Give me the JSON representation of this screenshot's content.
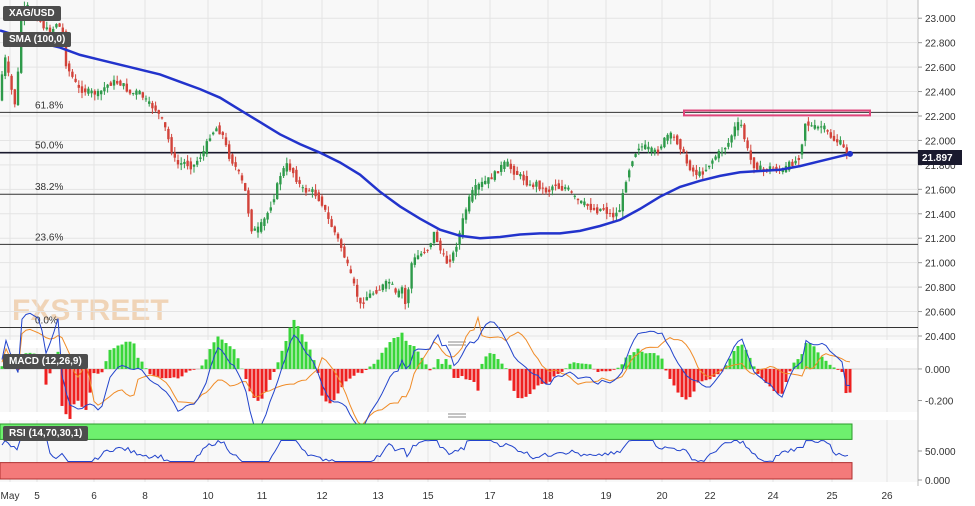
{
  "chart_data": {
    "type": "candlestick",
    "title": "XAG/USD",
    "indicator_label": "SMA (100,0)",
    "last_price": "21.897",
    "watermark": "FXSTREET",
    "price_axis": {
      "ylim": [
        20.4,
        23.1
      ],
      "ticks": [
        "23.000",
        "22.800",
        "22.600",
        "22.400",
        "22.200",
        "22.000",
        "21.800",
        "21.600",
        "21.400",
        "21.200",
        "21.000",
        "20.800",
        "20.600",
        "20.400"
      ]
    },
    "x_axis": {
      "ticks": [
        "May",
        "5",
        "6",
        "8",
        "10",
        "11",
        "12",
        "13",
        "15",
        "17",
        "18",
        "19",
        "20",
        "22",
        "24",
        "25",
        "26"
      ]
    },
    "fibonacci": [
      {
        "label": "61.8%",
        "value": 22.23
      },
      {
        "label": "50.0%",
        "value": 21.9
      },
      {
        "label": "38.2%",
        "value": 21.56
      },
      {
        "label": "23.6%",
        "value": 21.15
      },
      {
        "label": "0.0%",
        "value": 20.47
      }
    ],
    "resistance_zone": [
      22.205,
      22.245
    ],
    "price_path": [
      [
        0,
        22.3
      ],
      [
        6,
        22.7
      ],
      [
        12,
        22.45
      ],
      [
        18,
        22.25
      ],
      [
        22,
        23.0
      ],
      [
        28,
        23.1
      ],
      [
        34,
        23.05
      ],
      [
        40,
        23.0
      ],
      [
        46,
        22.92
      ],
      [
        52,
        22.88
      ],
      [
        58,
        22.96
      ],
      [
        64,
        22.9
      ],
      [
        68,
        22.6
      ],
      [
        72,
        22.55
      ],
      [
        80,
        22.42
      ],
      [
        90,
        22.4
      ],
      [
        100,
        22.38
      ],
      [
        108,
        22.45
      ],
      [
        116,
        22.48
      ],
      [
        124,
        22.46
      ],
      [
        132,
        22.38
      ],
      [
        140,
        22.4
      ],
      [
        150,
        22.3
      ],
      [
        158,
        22.25
      ],
      [
        166,
        22.12
      ],
      [
        172,
        21.95
      ],
      [
        178,
        21.8
      ],
      [
        186,
        21.82
      ],
      [
        194,
        21.78
      ],
      [
        200,
        21.85
      ],
      [
        206,
        21.92
      ],
      [
        212,
        22.05
      ],
      [
        218,
        22.1
      ],
      [
        224,
        22.05
      ],
      [
        230,
        21.88
      ],
      [
        236,
        21.8
      ],
      [
        242,
        21.7
      ],
      [
        248,
        21.55
      ],
      [
        252,
        21.28
      ],
      [
        258,
        21.26
      ],
      [
        264,
        21.32
      ],
      [
        270,
        21.42
      ],
      [
        276,
        21.55
      ],
      [
        282,
        21.72
      ],
      [
        288,
        21.8
      ],
      [
        294,
        21.75
      ],
      [
        300,
        21.65
      ],
      [
        306,
        21.58
      ],
      [
        312,
        21.6
      ],
      [
        318,
        21.55
      ],
      [
        324,
        21.48
      ],
      [
        330,
        21.35
      ],
      [
        338,
        21.22
      ],
      [
        344,
        21.1
      ],
      [
        350,
        20.95
      ],
      [
        356,
        20.8
      ],
      [
        362,
        20.65
      ],
      [
        368,
        20.72
      ],
      [
        374,
        20.75
      ],
      [
        380,
        20.78
      ],
      [
        386,
        20.82
      ],
      [
        392,
        20.85
      ],
      [
        398,
        20.72
      ],
      [
        404,
        20.8
      ],
      [
        408,
        20.6
      ],
      [
        412,
        20.98
      ],
      [
        418,
        21.05
      ],
      [
        424,
        21.08
      ],
      [
        430,
        21.12
      ],
      [
        436,
        21.25
      ],
      [
        442,
        21.1
      ],
      [
        448,
        21.0
      ],
      [
        454,
        21.05
      ],
      [
        460,
        21.2
      ],
      [
        466,
        21.4
      ],
      [
        472,
        21.55
      ],
      [
        478,
        21.62
      ],
      [
        484,
        21.65
      ],
      [
        490,
        21.68
      ],
      [
        496,
        21.72
      ],
      [
        502,
        21.78
      ],
      [
        508,
        21.82
      ],
      [
        514,
        21.75
      ],
      [
        520,
        21.72
      ],
      [
        526,
        21.68
      ],
      [
        532,
        21.62
      ],
      [
        538,
        21.65
      ],
      [
        544,
        21.6
      ],
      [
        550,
        21.58
      ],
      [
        556,
        21.65
      ],
      [
        562,
        21.6
      ],
      [
        568,
        21.62
      ],
      [
        574,
        21.55
      ],
      [
        580,
        21.5
      ],
      [
        586,
        21.48
      ],
      [
        592,
        21.45
      ],
      [
        598,
        21.42
      ],
      [
        604,
        21.45
      ],
      [
        610,
        21.4
      ],
      [
        616,
        21.38
      ],
      [
        622,
        21.45
      ],
      [
        628,
        21.7
      ],
      [
        634,
        21.85
      ],
      [
        640,
        21.95
      ],
      [
        646,
        21.95
      ],
      [
        652,
        21.92
      ],
      [
        658,
        21.9
      ],
      [
        664,
        21.98
      ],
      [
        670,
        22.05
      ],
      [
        676,
        22.02
      ],
      [
        682,
        21.95
      ],
      [
        688,
        21.82
      ],
      [
        694,
        21.75
      ],
      [
        700,
        21.72
      ],
      [
        706,
        21.75
      ],
      [
        712,
        21.82
      ],
      [
        718,
        21.88
      ],
      [
        724,
        21.92
      ],
      [
        730,
        21.98
      ],
      [
        736,
        22.1
      ],
      [
        742,
        22.15
      ],
      [
        748,
        21.95
      ],
      [
        754,
        21.8
      ],
      [
        760,
        21.78
      ],
      [
        766,
        21.75
      ],
      [
        772,
        21.78
      ],
      [
        778,
        21.76
      ],
      [
        784,
        21.75
      ],
      [
        790,
        21.8
      ],
      [
        796,
        21.82
      ],
      [
        802,
        21.88
      ],
      [
        806,
        22.15
      ],
      [
        812,
        22.12
      ],
      [
        818,
        22.1
      ],
      [
        824,
        22.12
      ],
      [
        830,
        22.05
      ],
      [
        836,
        22.0
      ],
      [
        842,
        21.98
      ],
      [
        846,
        21.92
      ],
      [
        850,
        21.897
      ]
    ],
    "sma_path": [
      [
        0,
        22.9
      ],
      [
        20,
        22.85
      ],
      [
        40,
        22.8
      ],
      [
        60,
        22.76
      ],
      [
        80,
        22.7
      ],
      [
        100,
        22.66
      ],
      [
        120,
        22.62
      ],
      [
        140,
        22.58
      ],
      [
        160,
        22.54
      ],
      [
        180,
        22.48
      ],
      [
        200,
        22.42
      ],
      [
        220,
        22.35
      ],
      [
        240,
        22.25
      ],
      [
        260,
        22.15
      ],
      [
        280,
        22.05
      ],
      [
        300,
        21.97
      ],
      [
        320,
        21.9
      ],
      [
        340,
        21.82
      ],
      [
        360,
        21.72
      ],
      [
        380,
        21.58
      ],
      [
        400,
        21.46
      ],
      [
        420,
        21.36
      ],
      [
        440,
        21.27
      ],
      [
        460,
        21.22
      ],
      [
        480,
        21.2
      ],
      [
        500,
        21.21
      ],
      [
        520,
        21.23
      ],
      [
        540,
        21.24
      ],
      [
        560,
        21.24
      ],
      [
        580,
        21.26
      ],
      [
        600,
        21.3
      ],
      [
        620,
        21.35
      ],
      [
        640,
        21.44
      ],
      [
        660,
        21.54
      ],
      [
        680,
        21.62
      ],
      [
        700,
        21.67
      ],
      [
        720,
        21.71
      ],
      [
        740,
        21.74
      ],
      [
        760,
        21.75
      ],
      [
        780,
        21.76
      ],
      [
        800,
        21.79
      ],
      [
        820,
        21.83
      ],
      [
        840,
        21.87
      ],
      [
        850,
        21.89
      ]
    ],
    "macd": {
      "label": "MACD (12,26,9)",
      "ylim": [
        -0.26,
        0.12
      ],
      "ticks": [
        "0.000",
        "-0.200"
      ]
    },
    "rsi": {
      "label": "RSI (14,70,30,1)",
      "ylim": [
        0,
        100
      ],
      "ticks": [
        "50.000",
        "0.000"
      ],
      "levels": [
        70,
        30
      ]
    }
  }
}
